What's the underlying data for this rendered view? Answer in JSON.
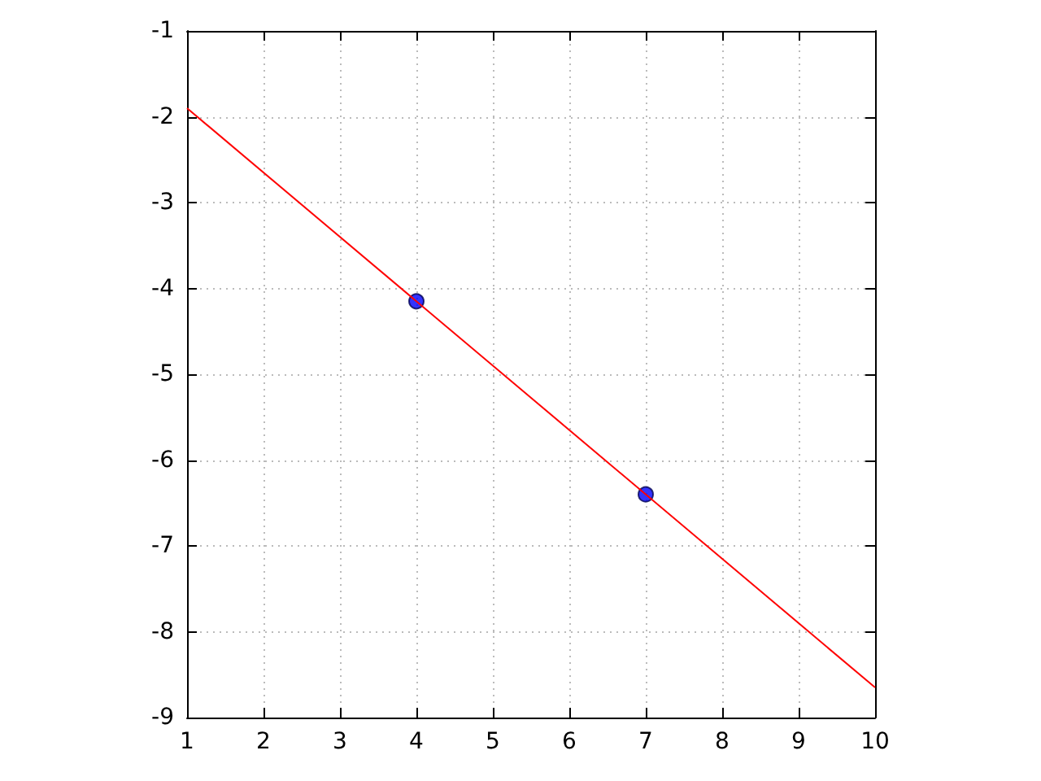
{
  "chart_data": {
    "type": "scatter",
    "xlim": [
      1,
      10
    ],
    "xticks": [
      1,
      2,
      3,
      4,
      5,
      6,
      7,
      8,
      9,
      10
    ],
    "ylim": [
      -9,
      -1
    ],
    "yticks": [
      -9,
      -8,
      -7,
      -6,
      -5,
      -4,
      -3,
      -2,
      -1
    ],
    "grid": true,
    "series": [
      {
        "type": "line",
        "color": "#ff0000",
        "marker": "none",
        "line_style": "solid",
        "x": [
          1,
          10
        ],
        "values": [
          -1.9,
          -8.65
        ]
      },
      {
        "color": "#0000ff",
        "marker": "circle",
        "x": [
          4,
          7
        ],
        "values": [
          -4.15,
          -6.4
        ]
      }
    ]
  }
}
